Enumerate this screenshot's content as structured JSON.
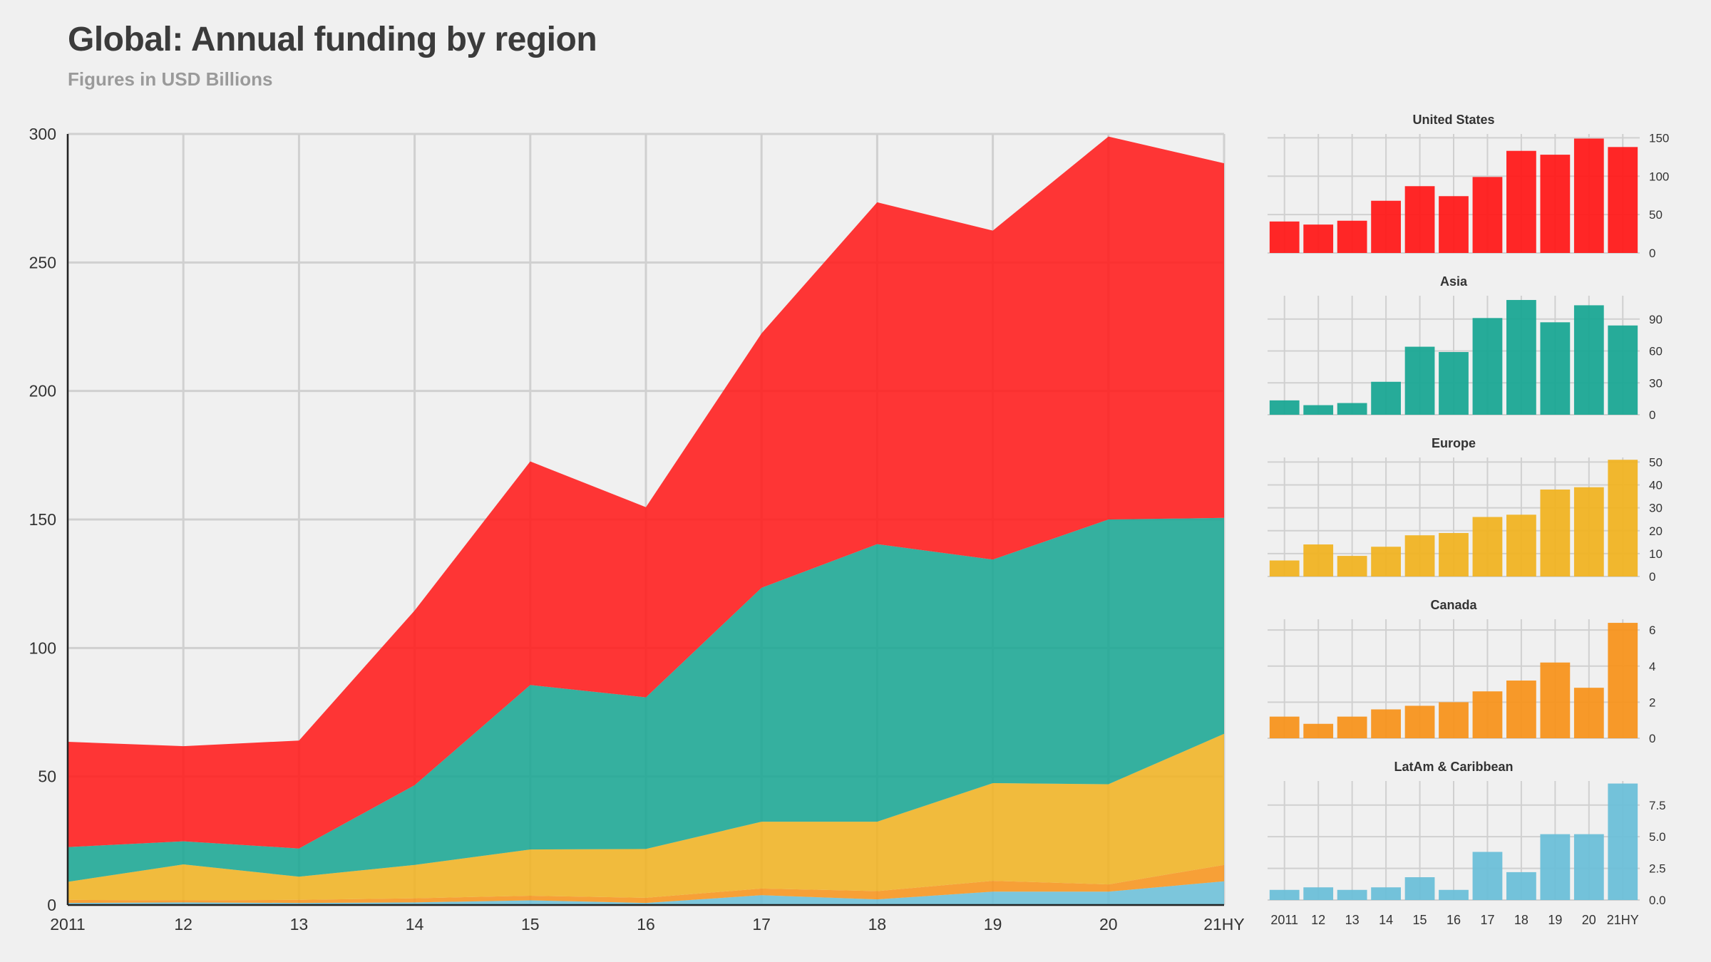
{
  "title": "Global: Annual funding by region",
  "subtitle": "Figures in USD Billions",
  "chart_data": [
    {
      "type": "area",
      "stacked": true,
      "categories": [
        "2011",
        "12",
        "13",
        "14",
        "15",
        "16",
        "17",
        "18",
        "19",
        "20",
        "21HY"
      ],
      "ylim": [
        0,
        300
      ],
      "yticks": [
        0,
        50,
        100,
        150,
        200,
        250,
        300
      ],
      "grid": true,
      "series": [
        {
          "name": "LatAm & Caribbean",
          "color": "#6bbfd8",
          "values": [
            0.8,
            1.0,
            0.8,
            1.0,
            1.8,
            0.8,
            3.8,
            2.2,
            5.2,
            5.2,
            9.2
          ]
        },
        {
          "name": "Canada",
          "color": "#f7941d",
          "values": [
            1.2,
            0.8,
            1.2,
            1.6,
            1.8,
            2.0,
            2.6,
            3.2,
            4.2,
            2.8,
            6.4
          ]
        },
        {
          "name": "Europe",
          "color": "#f0b323",
          "values": [
            7,
            14,
            9,
            13,
            18,
            19,
            26,
            27,
            38,
            39,
            51
          ]
        },
        {
          "name": "Asia",
          "color": "#1aa693",
          "values": [
            13.5,
            9,
            11,
            31,
            64,
            59,
            91,
            108,
            87,
            103,
            84
          ]
        },
        {
          "name": "United States",
          "color": "#ff1a1a",
          "values": [
            41,
            37,
            42,
            68,
            87,
            74,
            99,
            133,
            128,
            149,
            138
          ]
        }
      ]
    },
    {
      "type": "bar",
      "title": "United States",
      "color": "#ff1a1a",
      "categories": [
        "2011",
        "12",
        "13",
        "14",
        "15",
        "16",
        "17",
        "18",
        "19",
        "20",
        "21HY"
      ],
      "values": [
        41,
        37,
        42,
        68,
        87,
        74,
        99,
        133,
        128,
        149,
        138
      ],
      "ylim": [
        0,
        155
      ],
      "yticks": [
        0,
        50,
        100,
        150
      ],
      "ytick_labels": [
        "0",
        "50",
        "100",
        "150"
      ]
    },
    {
      "type": "bar",
      "title": "Asia",
      "color": "#1aa693",
      "categories": [
        "2011",
        "12",
        "13",
        "14",
        "15",
        "16",
        "17",
        "18",
        "19",
        "20",
        "21HY"
      ],
      "values": [
        13.5,
        9,
        11,
        31,
        64,
        59,
        91,
        108,
        87,
        103,
        84
      ],
      "ylim": [
        0,
        112
      ],
      "yticks": [
        0,
        30,
        60,
        90
      ],
      "ytick_labels": [
        "0",
        "30",
        "60",
        "90"
      ]
    },
    {
      "type": "bar",
      "title": "Europe",
      "color": "#f0b323",
      "categories": [
        "2011",
        "12",
        "13",
        "14",
        "15",
        "16",
        "17",
        "18",
        "19",
        "20",
        "21HY"
      ],
      "values": [
        7,
        14,
        9,
        13,
        18,
        19,
        26,
        27,
        38,
        39,
        51
      ],
      "ylim": [
        0,
        52
      ],
      "yticks": [
        0,
        10,
        20,
        30,
        40,
        50
      ],
      "ytick_labels": [
        "0",
        "10",
        "20",
        "30",
        "40",
        "50"
      ]
    },
    {
      "type": "bar",
      "title": "Canada",
      "color": "#f7941d",
      "categories": [
        "2011",
        "12",
        "13",
        "14",
        "15",
        "16",
        "17",
        "18",
        "19",
        "20",
        "21HY"
      ],
      "values": [
        1.2,
        0.8,
        1.2,
        1.6,
        1.8,
        2.0,
        2.6,
        3.2,
        4.2,
        2.8,
        6.4
      ],
      "ylim": [
        0,
        6.6
      ],
      "yticks": [
        0,
        2,
        4,
        6
      ],
      "ytick_labels": [
        "0",
        "2",
        "4",
        "6"
      ]
    },
    {
      "type": "bar",
      "title": "LatAm & Caribbean",
      "color": "#6bbfd8",
      "categories": [
        "2011",
        "12",
        "13",
        "14",
        "15",
        "16",
        "17",
        "18",
        "19",
        "20",
        "21HY"
      ],
      "values": [
        0.8,
        1.0,
        0.8,
        1.0,
        1.8,
        0.8,
        3.8,
        2.2,
        5.2,
        5.2,
        9.2
      ],
      "ylim": [
        0,
        9.4
      ],
      "yticks": [
        0,
        2.5,
        5,
        7.5
      ],
      "ytick_labels": [
        "0.0",
        "2.5",
        "5.0",
        "7.5"
      ]
    }
  ]
}
